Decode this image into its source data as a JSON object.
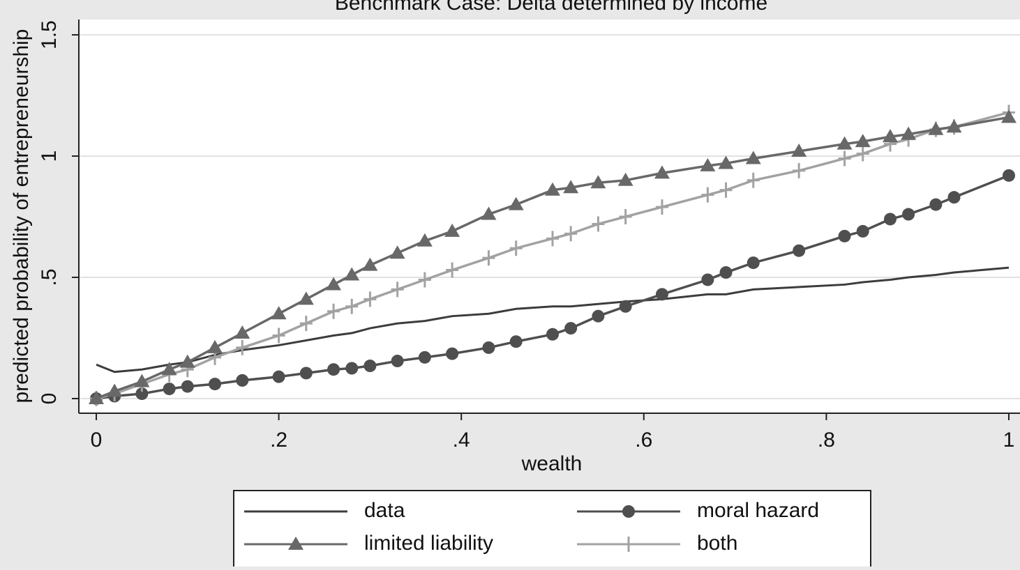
{
  "chart_data": {
    "type": "line",
    "title": "Benchmark Case: Delta determined by income",
    "x_label": "wealth",
    "y_label": "predicted probability of entrepreneurship",
    "x": [
      0,
      0.02,
      0.05,
      0.08,
      0.1,
      0.13,
      0.16,
      0.2,
      0.23,
      0.26,
      0.28,
      0.3,
      0.33,
      0.36,
      0.39,
      0.43,
      0.46,
      0.5,
      0.52,
      0.55,
      0.58,
      0.62,
      0.67,
      0.69,
      0.72,
      0.77,
      0.82,
      0.84,
      0.87,
      0.89,
      0.92,
      0.94,
      1.0
    ],
    "series": [
      {
        "name": "data",
        "color": "#3c3c3c",
        "marker": "none",
        "values": [
          0.14,
          0.11,
          0.12,
          0.14,
          0.15,
          0.18,
          0.2,
          0.22,
          0.24,
          0.26,
          0.27,
          0.29,
          0.31,
          0.32,
          0.34,
          0.35,
          0.37,
          0.38,
          0.38,
          0.39,
          0.4,
          0.41,
          0.43,
          0.43,
          0.45,
          0.46,
          0.47,
          0.48,
          0.49,
          0.5,
          0.51,
          0.52,
          0.54
        ]
      },
      {
        "name": "moral hazard",
        "color": "#4f4f4f",
        "marker": "circle",
        "values": [
          0,
          0.01,
          0.02,
          0.04,
          0.05,
          0.06,
          0.075,
          0.09,
          0.105,
          0.12,
          0.125,
          0.135,
          0.155,
          0.17,
          0.185,
          0.21,
          0.235,
          0.265,
          0.29,
          0.34,
          0.38,
          0.43,
          0.49,
          0.52,
          0.56,
          0.61,
          0.67,
          0.69,
          0.74,
          0.76,
          0.8,
          0.83,
          0.92
        ]
      },
      {
        "name": "limited liability",
        "color": "#686868",
        "marker": "triangle",
        "values": [
          0,
          0.03,
          0.07,
          0.12,
          0.15,
          0.21,
          0.27,
          0.35,
          0.41,
          0.47,
          0.51,
          0.55,
          0.6,
          0.65,
          0.69,
          0.76,
          0.8,
          0.86,
          0.87,
          0.89,
          0.9,
          0.93,
          0.96,
          0.97,
          0.99,
          1.02,
          1.05,
          1.06,
          1.08,
          1.09,
          1.11,
          1.12,
          1.16
        ]
      },
      {
        "name": "both",
        "color": "#a2a2a2",
        "marker": "plus",
        "values": [
          0,
          0.02,
          0.06,
          0.1,
          0.12,
          0.17,
          0.21,
          0.26,
          0.31,
          0.36,
          0.38,
          0.41,
          0.45,
          0.49,
          0.53,
          0.58,
          0.62,
          0.66,
          0.68,
          0.72,
          0.75,
          0.79,
          0.84,
          0.86,
          0.9,
          0.94,
          0.99,
          1.01,
          1.05,
          1.07,
          1.11,
          1.12,
          1.18
        ]
      }
    ],
    "xlim": [
      0,
      1
    ],
    "xticks": [
      0,
      {
        "value": 0.2,
        "label": ".2"
      },
      {
        "value": 0.4,
        "label": ".4"
      },
      {
        "value": 0.6,
        "label": ".6"
      },
      {
        "value": 0.8,
        "label": ".8"
      },
      1
    ],
    "ylim": [
      0,
      1.5
    ],
    "yticks": [
      0,
      {
        "value": 0.5,
        "label": ".5"
      },
      1,
      1.5
    ],
    "grid": true
  }
}
